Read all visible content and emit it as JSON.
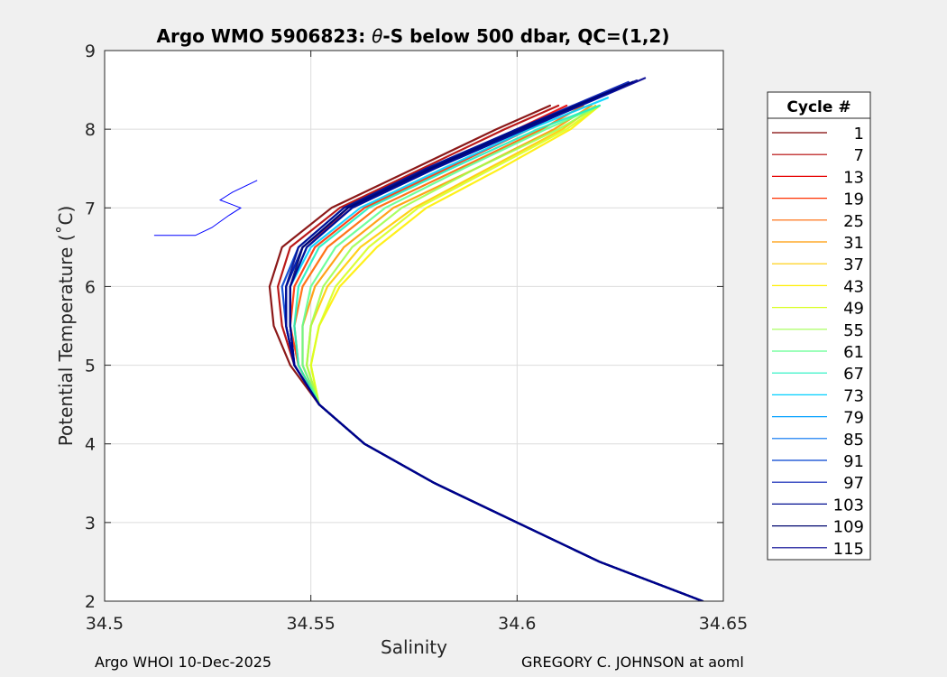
{
  "chart_data": {
    "type": "line",
    "title_prefix": "Argo WMO 5906823: ",
    "title_theta": "θ",
    "title_suffix": "-S below 500 dbar,  QC=(1,2)",
    "xlabel": "Salinity",
    "ylabel": "Potential Temperature (˚C)",
    "xlim": [
      34.5,
      34.65
    ],
    "ylim": [
      2,
      9
    ],
    "xticks": [
      34.5,
      34.55,
      34.6,
      34.65
    ],
    "xtick_labels": [
      "34.5",
      "34.55",
      "34.6",
      "34.65"
    ],
    "yticks": [
      2,
      3,
      4,
      5,
      6,
      7,
      8,
      9
    ],
    "ytick_labels": [
      "2",
      "3",
      "4",
      "5",
      "6",
      "7",
      "8",
      "9"
    ],
    "grid": true,
    "legend_title": "Cycle #",
    "legend_position": "right-outside",
    "colormap": [
      "#7f0000",
      "#b30000",
      "#e60000",
      "#ff3000",
      "#ff6600",
      "#ff9900",
      "#ffcc00",
      "#ffee00",
      "#d8ff20",
      "#a0ff50",
      "#60ff90",
      "#20f0c0",
      "#00d0ff",
      "#00a0ff",
      "#0070f0",
      "#0040d0",
      "#0018b0",
      "#000d90",
      "#00066f",
      "#00008f"
    ],
    "legend_entries": [
      "1",
      "7",
      "13",
      "19",
      "25",
      "31",
      "37",
      "43",
      "49",
      "55",
      "61",
      "67",
      "73",
      "79",
      "85",
      "91",
      "97",
      "103",
      "109",
      "115"
    ],
    "series": [
      {
        "name": "1",
        "s": [
          34.645,
          34.62,
          34.6,
          34.58,
          34.563,
          34.552,
          34.545,
          34.541,
          34.54,
          34.543,
          34.555,
          34.575,
          34.595,
          34.608
        ],
        "theta": [
          2.0,
          2.5,
          3.0,
          3.5,
          4.0,
          4.5,
          5.0,
          5.5,
          6.0,
          6.5,
          7.0,
          7.5,
          8.0,
          8.3
        ]
      },
      {
        "name": "7",
        "s": [
          34.645,
          34.62,
          34.6,
          34.58,
          34.563,
          34.552,
          34.546,
          34.543,
          34.542,
          34.545,
          34.557,
          34.577,
          34.597,
          34.61
        ],
        "theta": [
          2.0,
          2.5,
          3.0,
          3.5,
          4.0,
          4.5,
          5.0,
          5.5,
          6.0,
          6.5,
          7.0,
          7.5,
          8.0,
          8.3
        ]
      },
      {
        "name": "13",
        "s": [
          34.645,
          34.62,
          34.6,
          34.58,
          34.563,
          34.552,
          34.546,
          34.544,
          34.544,
          34.548,
          34.56,
          34.58,
          34.6,
          34.612
        ],
        "theta": [
          2.0,
          2.5,
          3.0,
          3.5,
          4.0,
          4.5,
          5.0,
          5.5,
          6.0,
          6.5,
          7.0,
          7.5,
          8.0,
          8.3
        ]
      },
      {
        "name": "19",
        "s": [
          34.645,
          34.62,
          34.6,
          34.58,
          34.563,
          34.552,
          34.547,
          34.545,
          34.546,
          34.551,
          34.563,
          34.583,
          34.603,
          34.614
        ],
        "theta": [
          2.0,
          2.5,
          3.0,
          3.5,
          4.0,
          4.5,
          5.0,
          5.5,
          6.0,
          6.5,
          7.0,
          7.5,
          8.0,
          8.3
        ]
      },
      {
        "name": "25",
        "s": [
          34.645,
          34.62,
          34.6,
          34.58,
          34.563,
          34.552,
          34.547,
          34.546,
          34.548,
          34.554,
          34.566,
          34.586,
          34.606,
          34.616
        ],
        "theta": [
          2.0,
          2.5,
          3.0,
          3.5,
          4.0,
          4.5,
          5.0,
          5.5,
          6.0,
          6.5,
          7.0,
          7.5,
          8.0,
          8.3
        ]
      },
      {
        "name": "31",
        "s": [
          34.645,
          34.62,
          34.6,
          34.58,
          34.563,
          34.552,
          34.548,
          34.548,
          34.551,
          34.558,
          34.57,
          34.59,
          34.609,
          34.618
        ],
        "theta": [
          2.0,
          2.5,
          3.0,
          3.5,
          4.0,
          4.5,
          5.0,
          5.5,
          6.0,
          6.5,
          7.0,
          7.5,
          8.0,
          8.3
        ]
      },
      {
        "name": "37",
        "s": [
          34.645,
          34.62,
          34.6,
          34.58,
          34.563,
          34.552,
          34.549,
          34.55,
          34.554,
          34.562,
          34.575,
          34.593,
          34.611,
          34.619
        ],
        "theta": [
          2.0,
          2.5,
          3.0,
          3.5,
          4.0,
          4.5,
          5.0,
          5.5,
          6.0,
          6.5,
          7.0,
          7.5,
          8.0,
          8.3
        ]
      },
      {
        "name": "43",
        "s": [
          34.645,
          34.62,
          34.6,
          34.58,
          34.563,
          34.552,
          34.55,
          34.552,
          34.557,
          34.566,
          34.578,
          34.596,
          34.613,
          34.62
        ],
        "theta": [
          2.0,
          2.5,
          3.0,
          3.5,
          4.0,
          4.5,
          5.0,
          5.5,
          6.0,
          6.5,
          7.0,
          7.5,
          8.0,
          8.3
        ]
      },
      {
        "name": "49",
        "s": [
          34.645,
          34.62,
          34.6,
          34.58,
          34.563,
          34.552,
          34.55,
          34.552,
          34.556,
          34.564,
          34.576,
          34.594,
          34.612,
          34.62
        ],
        "theta": [
          2.0,
          2.5,
          3.0,
          3.5,
          4.0,
          4.5,
          5.0,
          5.5,
          6.0,
          6.5,
          7.0,
          7.5,
          8.0,
          8.3
        ]
      },
      {
        "name": "55",
        "s": [
          34.645,
          34.62,
          34.6,
          34.58,
          34.563,
          34.552,
          34.549,
          34.55,
          34.553,
          34.56,
          34.572,
          34.59,
          34.61,
          34.62
        ],
        "theta": [
          2.0,
          2.5,
          3.0,
          3.5,
          4.0,
          4.5,
          5.0,
          5.5,
          6.0,
          6.5,
          7.0,
          7.5,
          8.0,
          8.3
        ]
      },
      {
        "name": "61",
        "s": [
          34.645,
          34.62,
          34.6,
          34.58,
          34.563,
          34.552,
          34.548,
          34.548,
          34.55,
          34.556,
          34.568,
          34.587,
          34.607,
          34.62
        ],
        "theta": [
          2.0,
          2.5,
          3.0,
          3.5,
          4.0,
          4.5,
          5.0,
          5.5,
          6.0,
          6.5,
          7.0,
          7.5,
          8.0,
          8.3
        ]
      },
      {
        "name": "67",
        "s": [
          34.645,
          34.62,
          34.6,
          34.58,
          34.563,
          34.552,
          34.547,
          34.546,
          34.547,
          34.552,
          34.564,
          34.584,
          34.605,
          34.62
        ],
        "theta": [
          2.0,
          2.5,
          3.0,
          3.5,
          4.0,
          4.5,
          5.0,
          5.5,
          6.0,
          6.5,
          7.0,
          7.5,
          8.0,
          8.3
        ]
      },
      {
        "name": "73",
        "s": [
          34.645,
          34.62,
          34.6,
          34.58,
          34.563,
          34.552,
          34.546,
          34.545,
          34.545,
          34.55,
          34.562,
          34.582,
          34.603,
          34.622
        ],
        "theta": [
          2.0,
          2.5,
          3.0,
          3.5,
          4.0,
          4.5,
          5.0,
          5.5,
          6.0,
          6.5,
          7.0,
          7.5,
          8.0,
          8.4
        ]
      },
      {
        "name": "79",
        "s": [
          34.645,
          34.62,
          34.6,
          34.58,
          34.563,
          34.552,
          34.546,
          34.545,
          34.545,
          34.549,
          34.56,
          34.58,
          34.602,
          34.624
        ],
        "theta": [
          2.0,
          2.5,
          3.0,
          3.5,
          4.0,
          4.5,
          5.0,
          5.5,
          6.0,
          6.5,
          7.0,
          7.5,
          8.0,
          8.5
        ]
      },
      {
        "name": "85",
        "s": [
          34.645,
          34.62,
          34.6,
          34.58,
          34.563,
          34.552,
          34.546,
          34.544,
          34.544,
          34.548,
          34.559,
          34.579,
          34.601,
          34.626
        ],
        "theta": [
          2.0,
          2.5,
          3.0,
          3.5,
          4.0,
          4.5,
          5.0,
          5.5,
          6.0,
          6.5,
          7.0,
          7.5,
          8.0,
          8.55
        ]
      },
      {
        "name": "91",
        "s": [
          34.645,
          34.62,
          34.6,
          34.58,
          34.563,
          34.552,
          34.546,
          34.544,
          34.543,
          34.547,
          34.558,
          34.578,
          34.6,
          34.628
        ],
        "theta": [
          2.0,
          2.5,
          3.0,
          3.5,
          4.0,
          4.5,
          5.0,
          5.5,
          6.0,
          6.5,
          7.0,
          7.5,
          8.0,
          8.6
        ]
      },
      {
        "name": "97",
        "s": [
          34.645,
          34.62,
          34.6,
          34.58,
          34.563,
          34.552,
          34.546,
          34.544,
          34.544,
          34.548,
          34.559,
          34.579,
          34.6,
          34.627
        ],
        "theta": [
          2.0,
          2.5,
          3.0,
          3.5,
          4.0,
          4.5,
          5.0,
          5.5,
          6.0,
          6.5,
          7.0,
          7.5,
          8.0,
          8.6
        ]
      },
      {
        "name": "103",
        "s": [
          34.645,
          34.62,
          34.6,
          34.58,
          34.563,
          34.552,
          34.546,
          34.544,
          34.544,
          34.547,
          34.558,
          34.578,
          34.6,
          34.629
        ],
        "theta": [
          2.0,
          2.5,
          3.0,
          3.5,
          4.0,
          4.5,
          5.0,
          5.5,
          6.0,
          6.5,
          7.0,
          7.5,
          8.0,
          8.62
        ]
      },
      {
        "name": "109",
        "s": [
          34.645,
          34.62,
          34.6,
          34.58,
          34.563,
          34.552,
          34.546,
          34.545,
          34.545,
          34.548,
          34.559,
          34.579,
          34.601,
          34.628
        ],
        "theta": [
          2.0,
          2.5,
          3.0,
          3.5,
          4.0,
          4.5,
          5.0,
          5.5,
          6.0,
          6.5,
          7.0,
          7.5,
          8.0,
          8.6
        ]
      },
      {
        "name": "115",
        "s": [
          34.645,
          34.62,
          34.6,
          34.58,
          34.563,
          34.552,
          34.546,
          34.545,
          34.545,
          34.549,
          34.56,
          34.58,
          34.602,
          34.631
        ],
        "theta": [
          2.0,
          2.5,
          3.0,
          3.5,
          4.0,
          4.5,
          5.0,
          5.5,
          6.0,
          6.5,
          7.0,
          7.5,
          8.0,
          8.65
        ]
      }
    ],
    "outlier_segment": {
      "s": [
        34.512,
        34.522,
        34.526,
        34.53,
        34.533,
        34.528,
        34.531,
        34.537
      ],
      "theta": [
        6.65,
        6.65,
        6.75,
        6.9,
        7.0,
        7.1,
        7.2,
        7.35
      ]
    }
  },
  "footer": {
    "left": "Argo WHOI 10-Dec-2025",
    "right": "GREGORY C. JOHNSON at aoml"
  }
}
